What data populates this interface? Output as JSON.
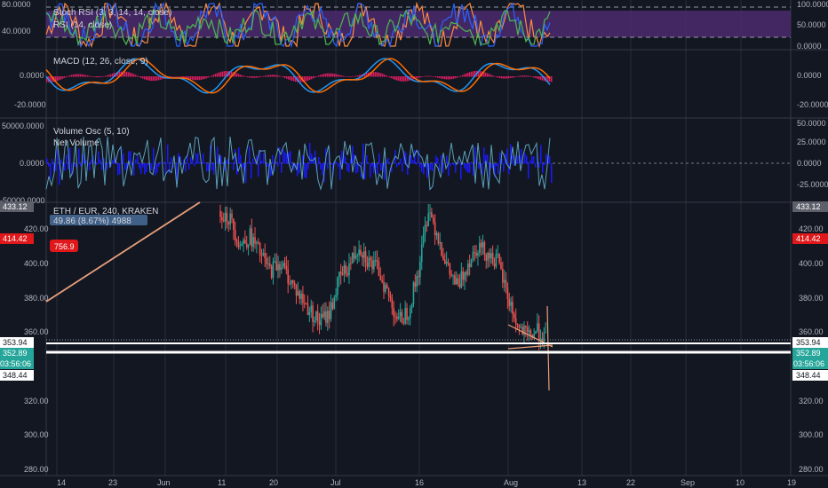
{
  "colors": {
    "background": "#131722",
    "grid": "#2a2e39",
    "up": "#26a69a",
    "down": "#ef5350",
    "stoch_band": "#4b2a6e",
    "stoch_k": "#ff8a3d",
    "stoch_d": "#2962ff",
    "rsi": "#4caf50",
    "macd_line": "#2196f3",
    "macd_signal": "#ff6d00",
    "macd_hist": "#ff1f6b",
    "vol_osc": "#5b9fb8",
    "net_volume": "#1a1aff",
    "trendline": "#e8a07a"
  },
  "panes": {
    "stoch": {
      "title": "Stoch RSI (3, 3, 14, 14, close)",
      "subtitle": "RSI (14, close)",
      "left_ticks": [
        "80.0000",
        "40.0000"
      ],
      "right_ticks": [
        "100.0000",
        "50.0000",
        "0.0000"
      ]
    },
    "macd": {
      "title": "MACD (12, 26, close, 9)",
      "left_ticks": [
        "0.0000",
        "-20.0000"
      ],
      "right_ticks": [
        "0.0000",
        "-20.0000"
      ]
    },
    "volume": {
      "title": "Volume Osc (5, 10)",
      "subtitle": "Net Volume",
      "left_ticks": [
        "50000.0000",
        "0.0000",
        "-50000.0000"
      ],
      "right_ticks": [
        "50.0000",
        "25.0000",
        "0.0000",
        "-25.0000"
      ]
    },
    "price": {
      "symbol_label": "ETH / EUR, 240, KRAKEN",
      "change_label": "49.86 (8.67%) 4988",
      "badge": "756.9",
      "left_ticks": [
        "420.00",
        "400.00",
        "380.00",
        "360.00",
        "320.00",
        "300.00",
        "280.00"
      ],
      "right_ticks": [
        "420.00",
        "400.00",
        "380.00",
        "360.00",
        "320.00",
        "300.00",
        "280.00"
      ]
    }
  },
  "price_tags": {
    "left": {
      "high": "433.12",
      "marked": "414.42",
      "line_a": "353.94",
      "current": "352.89",
      "countdown": "03:56:06",
      "low": "348.44"
    },
    "right": {
      "high": "433.12",
      "marked": "414.42",
      "line_a": "353.94",
      "current": "352.89",
      "countdown": "03:56:06",
      "low": "348.44"
    }
  },
  "time_axis": [
    "14",
    "23",
    "Jun",
    "11",
    "20",
    "Jul",
    "16",
    "Aug",
    "13",
    "22",
    "Sep",
    "10",
    "19"
  ],
  "chart_data": {
    "type": "candlestick",
    "symbol": "ETH / EUR, 240, KRAKEN",
    "price_range": [
      275,
      435
    ],
    "current_price": 352.89,
    "horizontal_lines": [
      353.94,
      352.89
    ],
    "x_ticks": [
      "14",
      "23",
      "Jun",
      "11",
      "20",
      "Jul",
      "16",
      "Aug",
      "13",
      "22",
      "Sep",
      "10",
      "19"
    ],
    "approx_closes": [
      430,
      425,
      410,
      415,
      405,
      395,
      400,
      390,
      380,
      372,
      365,
      370,
      390,
      398,
      410,
      400,
      395,
      380,
      365,
      372,
      395,
      432,
      415,
      395,
      385,
      400,
      410,
      405,
      400,
      380,
      362,
      356,
      360,
      353
    ]
  }
}
